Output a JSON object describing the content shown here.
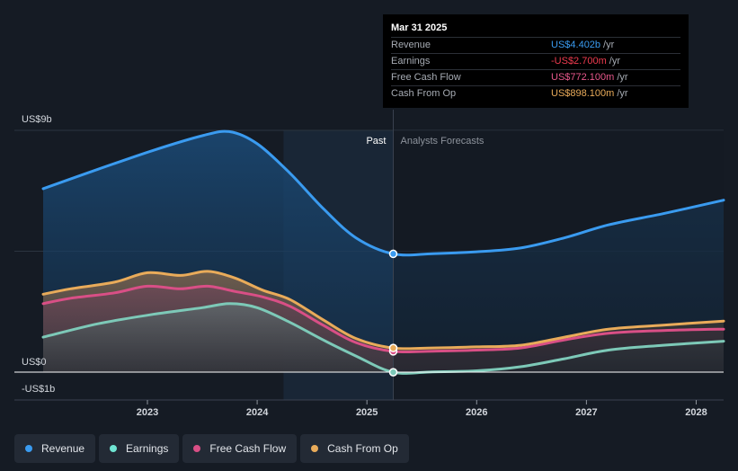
{
  "tooltip": {
    "date": "Mar 31 2025",
    "rows": [
      {
        "label": "Revenue",
        "value": "US$4.402b",
        "unit": "/yr",
        "color": "#3a9bf0"
      },
      {
        "label": "Earnings",
        "value": "-US$2.700m",
        "unit": "/yr",
        "color": "#ef3b4f"
      },
      {
        "label": "Free Cash Flow",
        "value": "US$772.100m",
        "unit": "/yr",
        "color": "#e8588c"
      },
      {
        "label": "Cash From Op",
        "value": "US$898.100m",
        "unit": "/yr",
        "color": "#e9ab5a"
      }
    ]
  },
  "legend": [
    {
      "label": "Revenue",
      "color": "#3a9bf0"
    },
    {
      "label": "Earnings",
      "color": "#6fe4d2"
    },
    {
      "label": "Free Cash Flow",
      "color": "#d94f86"
    },
    {
      "label": "Cash From Op",
      "color": "#e9ab5a"
    }
  ],
  "chart_data": {
    "type": "line",
    "title": "",
    "xlabel": "",
    "ylabel": "",
    "y_axis_labels": [
      "US$9b",
      "US$0",
      "-US$1b"
    ],
    "ylim": [
      -1,
      9
    ],
    "xlim": [
      2022.05,
      2028.25
    ],
    "x_ticks": [
      "2023",
      "2024",
      "2025",
      "2026",
      "2027",
      "2028"
    ],
    "x_tick_values": [
      2023,
      2024,
      2025,
      2026,
      2027,
      2028
    ],
    "past_label": "Past",
    "forecast_label": "Analysts Forecasts",
    "divider_x": 2025.24,
    "highlight_start_x": 2024.24,
    "series": [
      {
        "name": "Revenue",
        "color": "#3a9bf0",
        "x": [
          2022.05,
          2022.55,
          2023.05,
          2023.5,
          2023.75,
          2024.0,
          2024.3,
          2024.6,
          2024.9,
          2025.24,
          2025.6,
          2026.0,
          2026.4,
          2026.8,
          2027.2,
          2027.7,
          2028.25
        ],
        "y": [
          6.83,
          7.55,
          8.25,
          8.8,
          8.95,
          8.5,
          7.4,
          6.1,
          5.0,
          4.402,
          4.41,
          4.48,
          4.62,
          5.0,
          5.48,
          5.9,
          6.4
        ]
      },
      {
        "name": "Earnings",
        "color": "#7dc9b8",
        "x": [
          2022.05,
          2022.55,
          2023.05,
          2023.5,
          2023.75,
          2024.0,
          2024.3,
          2024.6,
          2024.9,
          2025.24,
          2025.6,
          2026.0,
          2026.4,
          2026.8,
          2027.2,
          2027.7,
          2028.25
        ],
        "y": [
          1.3,
          1.8,
          2.15,
          2.4,
          2.55,
          2.4,
          1.85,
          1.2,
          0.6,
          -0.0027,
          0.01,
          0.05,
          0.2,
          0.5,
          0.82,
          1.0,
          1.15
        ]
      },
      {
        "name": "Free Cash Flow",
        "color": "#d94f86",
        "x": [
          2022.05,
          2022.3,
          2022.7,
          2023.0,
          2023.3,
          2023.55,
          2023.8,
          2024.05,
          2024.3,
          2024.6,
          2024.9,
          2025.24,
          2025.6,
          2026.0,
          2026.4,
          2026.8,
          2027.2,
          2027.7,
          2028.25
        ],
        "y": [
          2.55,
          2.75,
          2.95,
          3.2,
          3.1,
          3.2,
          3.0,
          2.8,
          2.45,
          1.75,
          1.1,
          0.7721,
          0.78,
          0.82,
          0.9,
          1.2,
          1.45,
          1.55,
          1.6
        ]
      },
      {
        "name": "Cash From Op",
        "color": "#e9ab5a",
        "x": [
          2022.05,
          2022.3,
          2022.7,
          2023.0,
          2023.3,
          2023.55,
          2023.8,
          2024.05,
          2024.3,
          2024.6,
          2024.9,
          2025.24,
          2025.6,
          2026.0,
          2026.4,
          2026.8,
          2027.2,
          2027.7,
          2028.25
        ],
        "y": [
          2.9,
          3.1,
          3.35,
          3.7,
          3.6,
          3.75,
          3.5,
          3.05,
          2.7,
          1.95,
          1.25,
          0.8981,
          0.9,
          0.94,
          1.0,
          1.3,
          1.6,
          1.75,
          1.9
        ]
      }
    ]
  }
}
